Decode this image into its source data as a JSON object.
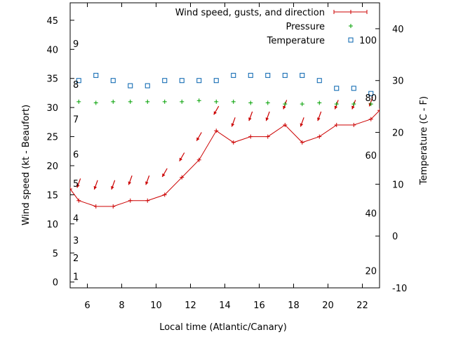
{
  "chart_data": {
    "type": "line",
    "xlabel": "Local time (Atlantic/Canary)",
    "ylabel_left": "Wind speed (kt - Beaufort)",
    "ylabel_right": "Temperature (C - F)",
    "xlim": [
      5,
      23
    ],
    "ylim_left": [
      -1,
      48
    ],
    "ylim_right": [
      -10,
      45
    ],
    "x_ticks": [
      6,
      8,
      10,
      12,
      14,
      16,
      18,
      20,
      22
    ],
    "y_ticks_left": [
      0,
      5,
      10,
      15,
      20,
      25,
      30,
      35,
      40,
      45
    ],
    "y_ticks_right": [
      -10,
      0,
      10,
      20,
      30,
      40
    ],
    "beaufort_labels": [
      {
        "label": "1",
        "value": 1
      },
      {
        "label": "2",
        "value": 4.2
      },
      {
        "label": "3",
        "value": 7.2
      },
      {
        "label": "4",
        "value": 11
      },
      {
        "label": "5",
        "value": 17
      },
      {
        "label": "6",
        "value": 22
      },
      {
        "label": "7",
        "value": 28
      },
      {
        "label": "8",
        "value": 34
      },
      {
        "label": "9",
        "value": 41
      }
    ],
    "fahrenheit_labels": [
      {
        "label": "20",
        "value": -6.7
      },
      {
        "label": "40",
        "value": 4.4
      },
      {
        "label": "60",
        "value": 15.6
      },
      {
        "label": "80",
        "value": 26.7
      },
      {
        "label": "100",
        "value": 37.8
      }
    ],
    "legend": {
      "placement": "top-right",
      "entries": [
        "Wind speed, gusts, and direction",
        "Pressure",
        "Temperature"
      ]
    },
    "series": [
      {
        "name": "Wind speed, gusts, and direction",
        "color": "#cc0000",
        "x": [
          5,
          5.5,
          6.5,
          7.5,
          8.5,
          9.5,
          10.5,
          11.5,
          12.5,
          13.5,
          14.5,
          15.5,
          16.5,
          17.5,
          18.5,
          19.5,
          20.5,
          21.5,
          22.5,
          23
        ],
        "y": [
          16,
          14,
          13,
          13,
          14,
          14,
          15,
          18,
          21,
          26,
          24,
          25,
          25,
          27,
          24,
          25,
          27,
          27,
          28,
          29.5
        ]
      },
      {
        "name": "Pressure",
        "color": "#00a000",
        "x": [
          5.5,
          6.5,
          7.5,
          8.5,
          9.5,
          10.5,
          11.5,
          12.5,
          13.5,
          14.5,
          15.5,
          16.5,
          17.5,
          18.5,
          19.5,
          20.5,
          21.5,
          22.5
        ],
        "y": [
          31,
          30.8,
          31,
          31,
          31,
          31,
          31,
          31.2,
          31,
          31,
          30.8,
          30.8,
          30.6,
          30.6,
          30.8,
          30.6,
          30.6,
          30.6
        ]
      },
      {
        "name": "Temperature",
        "color": "#0060ad",
        "x": [
          5.5,
          6.5,
          7.5,
          8.5,
          9.5,
          10.5,
          11.5,
          12.5,
          13.5,
          14.5,
          15.5,
          16.5,
          17.5,
          18.5,
          19.5,
          20.5,
          21.5,
          22.5
        ],
        "y": [
          30,
          31,
          30,
          29,
          29,
          30,
          30,
          30,
          30,
          31,
          31,
          31,
          31,
          31,
          30,
          28.5,
          28.5,
          27.5
        ]
      }
    ],
    "wind_direction_arrows": {
      "x": [
        5.5,
        6.5,
        7.5,
        8.5,
        9.5,
        10.5,
        11.5,
        12.5,
        13.5,
        14.5,
        15.5,
        16.5,
        17.5,
        18.5,
        19.5,
        20.5,
        21.5,
        22.5
      ],
      "y": [
        17,
        16.7,
        16.7,
        17.5,
        17.5,
        18.8,
        21.5,
        25,
        29.5,
        27.5,
        28.5,
        28.5,
        30.5,
        27.5,
        28.5,
        30.5,
        30.5,
        31
      ],
      "direction_deg": [
        200,
        200,
        200,
        200,
        200,
        210,
        210,
        210,
        210,
        200,
        200,
        200,
        200,
        200,
        200,
        200,
        200,
        200
      ]
    }
  }
}
